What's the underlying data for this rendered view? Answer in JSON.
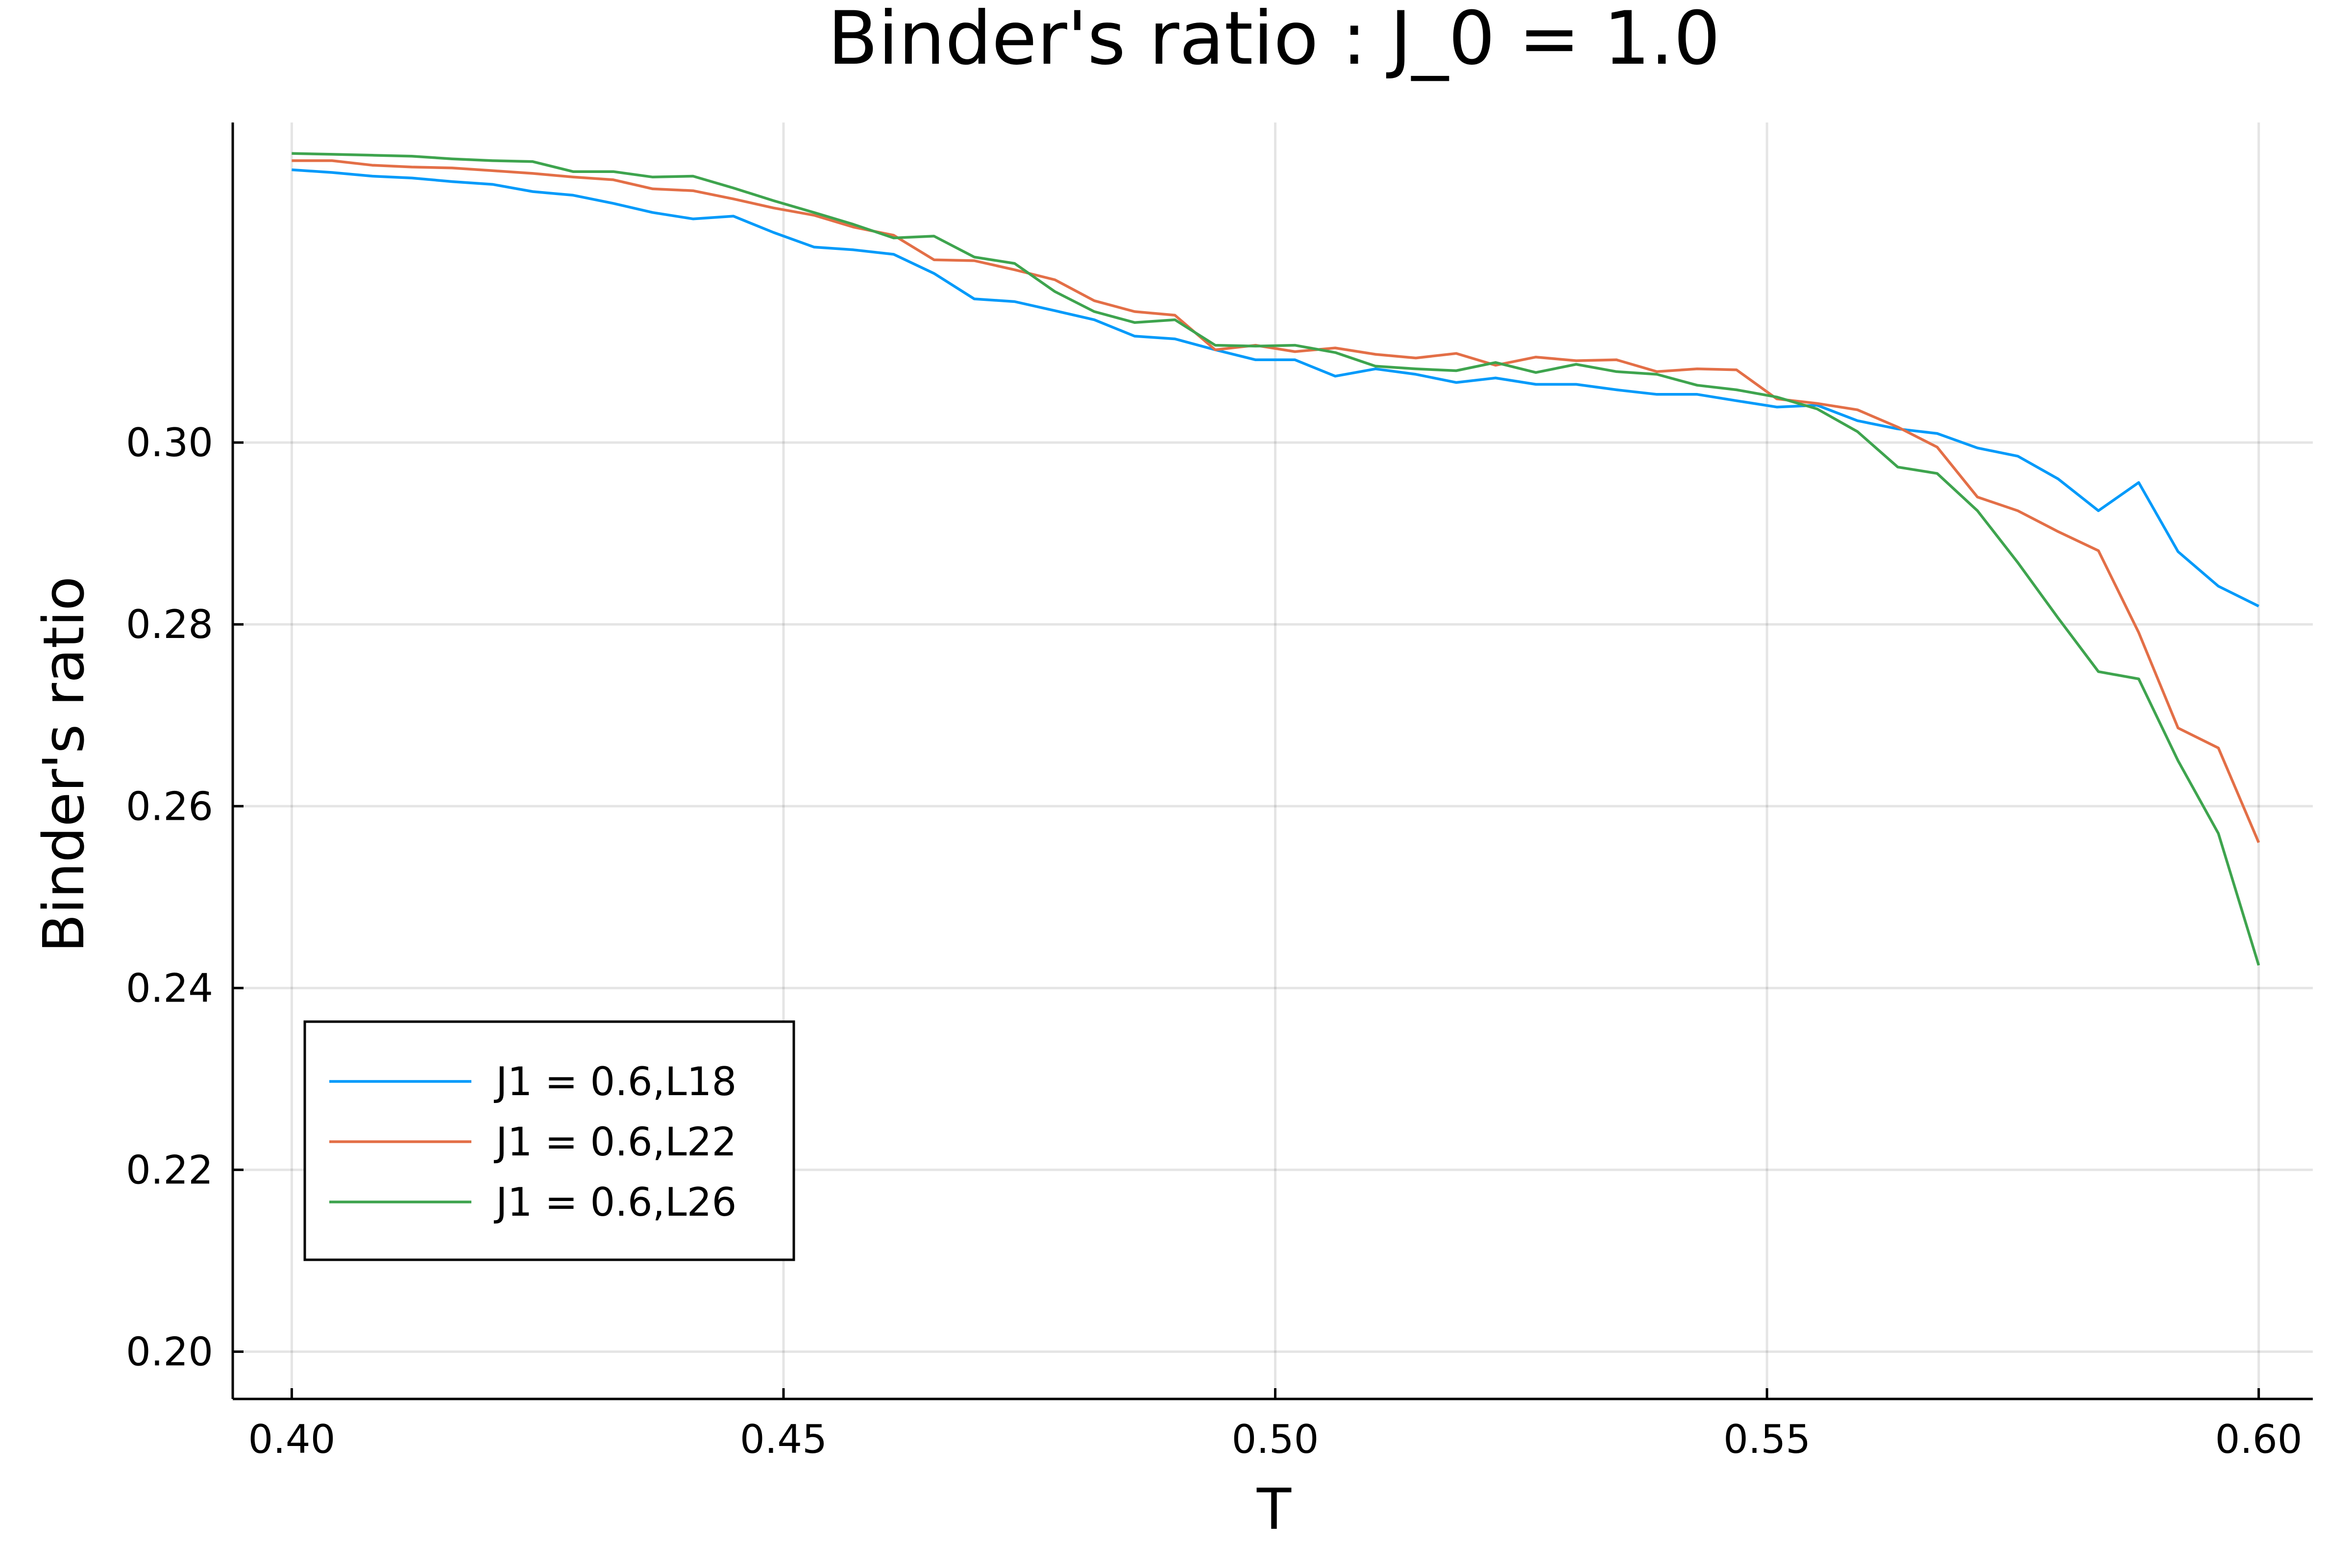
{
  "chart_data": {
    "type": "line",
    "title": "Binder's ratio : J_0 = 1.0",
    "xlabel": "T",
    "ylabel": "Binder's ratio",
    "xlim": [
      0.394,
      0.6055
    ],
    "ylim": [
      0.1948,
      0.3352
    ],
    "xticks": [
      0.4,
      0.45,
      0.5,
      0.55,
      0.6
    ],
    "xtick_labels": [
      "0.40",
      "0.45",
      "0.50",
      "0.55",
      "0.60"
    ],
    "yticks": [
      0.2,
      0.22,
      0.24,
      0.26,
      0.28,
      0.3
    ],
    "ytick_labels": [
      "0.20",
      "0.22",
      "0.24",
      "0.26",
      "0.28",
      "0.30"
    ],
    "grid": true,
    "legend_position": "bottom-left",
    "x": [
      0.4,
      0.4041,
      0.4082,
      0.4122,
      0.4163,
      0.4204,
      0.4245,
      0.4286,
      0.4327,
      0.4367,
      0.4408,
      0.4449,
      0.449,
      0.4531,
      0.4571,
      0.4612,
      0.4653,
      0.4694,
      0.4735,
      0.4776,
      0.4816,
      0.4857,
      0.4898,
      0.4939,
      0.498,
      0.502,
      0.5061,
      0.5102,
      0.5143,
      0.5184,
      0.5224,
      0.5265,
      0.5306,
      0.5347,
      0.5388,
      0.5429,
      0.5469,
      0.551,
      0.5551,
      0.5592,
      0.5633,
      0.5673,
      0.5714,
      0.5755,
      0.5796,
      0.5837,
      0.5878,
      0.5918,
      0.5959,
      0.6
    ],
    "series": [
      {
        "name": "J1 = 0.6,L18",
        "color": "#009AFA",
        "values": [
          0.33,
          0.3297,
          0.3293,
          0.3291,
          0.3287,
          0.3284,
          0.3276,
          0.3272,
          0.3263,
          0.3253,
          0.3246,
          0.3249,
          0.3231,
          0.3215,
          0.3212,
          0.3207,
          0.3186,
          0.3158,
          0.3155,
          0.3145,
          0.3135,
          0.3117,
          0.3114,
          0.3102,
          0.3091,
          0.3091,
          0.3073,
          0.3081,
          0.3075,
          0.3066,
          0.3071,
          0.3064,
          0.3064,
          0.3058,
          0.3053,
          0.3053,
          0.3046,
          0.3039,
          0.3041,
          0.3024,
          0.3015,
          0.301,
          0.2994,
          0.2985,
          0.296,
          0.2925,
          0.2956,
          0.288,
          0.2842,
          0.282
        ]
      },
      {
        "name": "J1 = 0.6,L22",
        "color": "#E36F47",
        "values": [
          0.331,
          0.331,
          0.3305,
          0.3303,
          0.3302,
          0.3299,
          0.3296,
          0.3292,
          0.3289,
          0.3279,
          0.3277,
          0.3268,
          0.3258,
          0.325,
          0.3237,
          0.3228,
          0.3201,
          0.32,
          0.319,
          0.3179,
          0.3156,
          0.3144,
          0.314,
          0.3102,
          0.3107,
          0.31,
          0.3104,
          0.3097,
          0.3093,
          0.3098,
          0.3085,
          0.3094,
          0.309,
          0.3091,
          0.3078,
          0.3081,
          0.308,
          0.3048,
          0.3043,
          0.3036,
          0.3017,
          0.2995,
          0.294,
          0.2925,
          0.2902,
          0.2881,
          0.2791,
          0.2686,
          0.2664,
          0.256
        ]
      },
      {
        "name": "J1 = 0.6,L26",
        "color": "#3EA44E",
        "values": [
          0.3318,
          0.3317,
          0.3316,
          0.3315,
          0.3312,
          0.331,
          0.3309,
          0.3298,
          0.3298,
          0.3292,
          0.3293,
          0.328,
          0.3266,
          0.3253,
          0.324,
          0.3225,
          0.3227,
          0.3204,
          0.3197,
          0.3166,
          0.3144,
          0.3132,
          0.3135,
          0.3107,
          0.3106,
          0.3107,
          0.3099,
          0.3084,
          0.3081,
          0.3079,
          0.3088,
          0.3077,
          0.3086,
          0.3078,
          0.3075,
          0.3063,
          0.3058,
          0.305,
          0.3037,
          0.3012,
          0.2973,
          0.2966,
          0.2925,
          0.2868,
          0.2807,
          0.2748,
          0.274,
          0.265,
          0.257,
          0.2425
        ]
      }
    ]
  }
}
